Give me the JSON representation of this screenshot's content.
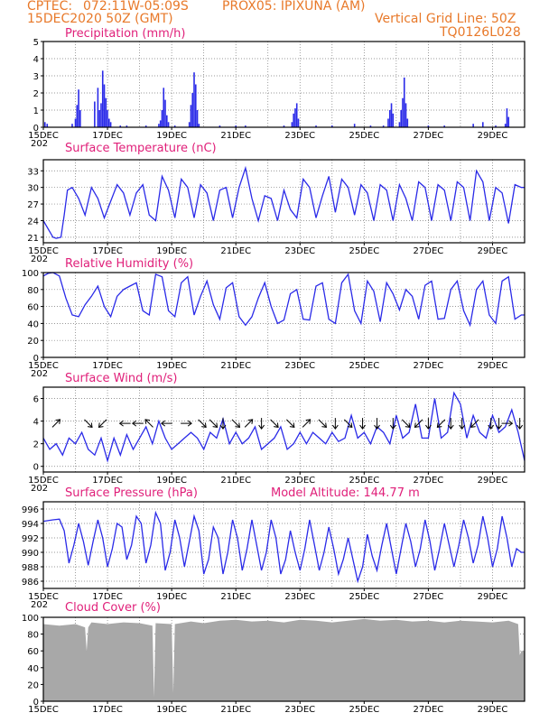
{
  "header": {
    "org": "CPTEC:",
    "coords": "072:11W-05:09S",
    "station": "PROX05: IPIXUNA (AM)",
    "datetime": "15DEC2020 50Z (GMT)",
    "vgrid": "Vertical Grid Line: 50Z",
    "code": "TQ0126L028"
  },
  "x_ticks": [
    "15DEC",
    "17DEC",
    "19DEC",
    "21DEC",
    "23DEC",
    "25DEC",
    "27DEC",
    "29DEC"
  ],
  "x_year_fragment": "202",
  "colors": {
    "series": "#2a2ae8",
    "bars": "#2a2ae8",
    "cloud": "#a8a8a8",
    "title": "#e0207a",
    "header": "#e8792a"
  },
  "chart_data": [
    {
      "id": "precip",
      "type": "bar",
      "title": "Precipitation (mm/h)",
      "ylim": [
        0,
        5
      ],
      "yticks": [
        0,
        1,
        2,
        3,
        4,
        5
      ],
      "xlim": [
        0,
        15
      ],
      "bars": [
        [
          0.05,
          0.3
        ],
        [
          0.12,
          0.2
        ],
        [
          0.9,
          0.2
        ],
        [
          1.0,
          0.5
        ],
        [
          1.05,
          1.3
        ],
        [
          1.1,
          2.2
        ],
        [
          1.15,
          1.0
        ],
        [
          1.6,
          1.5
        ],
        [
          1.7,
          2.3
        ],
        [
          1.75,
          1.0
        ],
        [
          1.8,
          1.4
        ],
        [
          1.85,
          3.3
        ],
        [
          1.9,
          2.5
        ],
        [
          1.95,
          1.7
        ],
        [
          2.0,
          1.0
        ],
        [
          2.05,
          0.5
        ],
        [
          2.1,
          0.3
        ],
        [
          2.4,
          0.1
        ],
        [
          2.6,
          0.1
        ],
        [
          3.2,
          0.1
        ],
        [
          3.6,
          0.2
        ],
        [
          3.65,
          0.4
        ],
        [
          3.7,
          1.0
        ],
        [
          3.75,
          2.3
        ],
        [
          3.8,
          1.6
        ],
        [
          3.85,
          0.7
        ],
        [
          3.9,
          0.3
        ],
        [
          4.1,
          0.1
        ],
        [
          4.55,
          0.3
        ],
        [
          4.6,
          1.3
        ],
        [
          4.65,
          2.0
        ],
        [
          4.7,
          3.2
        ],
        [
          4.75,
          2.5
        ],
        [
          4.8,
          1.0
        ],
        [
          4.85,
          0.2
        ],
        [
          5.5,
          0.1
        ],
        [
          6.0,
          0.1
        ],
        [
          6.3,
          0.1
        ],
        [
          7.5,
          0.1
        ],
        [
          7.75,
          0.3
        ],
        [
          7.8,
          0.8
        ],
        [
          7.85,
          1.1
        ],
        [
          7.9,
          1.4
        ],
        [
          7.95,
          0.5
        ],
        [
          8.5,
          0.1
        ],
        [
          9.0,
          0.1
        ],
        [
          9.7,
          0.2
        ],
        [
          10.2,
          0.1
        ],
        [
          10.6,
          0.1
        ],
        [
          10.75,
          0.5
        ],
        [
          10.8,
          1.0
        ],
        [
          10.85,
          1.4
        ],
        [
          10.9,
          0.8
        ],
        [
          11.1,
          0.3
        ],
        [
          11.15,
          1.0
        ],
        [
          11.2,
          1.7
        ],
        [
          11.25,
          2.9
        ],
        [
          11.3,
          1.4
        ],
        [
          11.35,
          0.5
        ],
        [
          12.0,
          0.1
        ],
        [
          12.5,
          0.1
        ],
        [
          13.4,
          0.2
        ],
        [
          13.7,
          0.3
        ],
        [
          14.1,
          0.1
        ],
        [
          14.4,
          0.2
        ],
        [
          14.45,
          1.1
        ],
        [
          14.5,
          0.6
        ]
      ]
    },
    {
      "id": "temperature",
      "type": "line",
      "title": "Surface Temperature (nC)",
      "ylim": [
        20,
        35
      ],
      "yticks": [
        21,
        24,
        27,
        30,
        33
      ],
      "xlim": [
        0,
        15
      ],
      "x": [
        0,
        0.2,
        0.3,
        0.4,
        0.55,
        0.65,
        0.75,
        0.9,
        1.1,
        1.3,
        1.5,
        1.7,
        1.9,
        2.1,
        2.3,
        2.5,
        2.7,
        2.9,
        3.1,
        3.3,
        3.5,
        3.7,
        3.9,
        4.1,
        4.3,
        4.5,
        4.7,
        4.9,
        5.1,
        5.3,
        5.5,
        5.7,
        5.9,
        6.1,
        6.3,
        6.5,
        6.7,
        6.9,
        7.1,
        7.3,
        7.5,
        7.7,
        7.9,
        8.1,
        8.3,
        8.5,
        8.7,
        8.9,
        9.1,
        9.3,
        9.5,
        9.7,
        9.9,
        10.1,
        10.3,
        10.5,
        10.7,
        10.9,
        11.1,
        11.3,
        11.5,
        11.7,
        11.9,
        12.1,
        12.3,
        12.5,
        12.7,
        12.9,
        13.1,
        13.3,
        13.5,
        13.7,
        13.9,
        14.1,
        14.3,
        14.5,
        14.7,
        14.9,
        15.0
      ],
      "y": [
        24.0,
        22.0,
        21.0,
        20.8,
        21.0,
        25.0,
        29.5,
        30.0,
        28.0,
        25.0,
        30.0,
        28.0,
        24.5,
        27.5,
        30.5,
        29.0,
        25.0,
        29.0,
        30.5,
        25.0,
        24.0,
        32.0,
        29.5,
        24.5,
        31.5,
        30.0,
        24.5,
        30.5,
        29.0,
        24.0,
        29.5,
        30.0,
        24.5,
        30.0,
        33.5,
        28.0,
        24.0,
        28.5,
        28.0,
        24.0,
        29.5,
        26.0,
        24.5,
        31.5,
        30.0,
        24.5,
        28.5,
        32.0,
        25.5,
        31.5,
        30.0,
        25.0,
        30.5,
        29.0,
        24.0,
        30.5,
        29.5,
        24.0,
        30.5,
        28.0,
        24.0,
        31.0,
        30.0,
        24.0,
        30.5,
        29.5,
        24.0,
        31.0,
        30.0,
        24.0,
        33.0,
        31.0,
        24.0,
        30.0,
        29.0,
        23.5,
        30.5,
        30.0,
        30.0
      ]
    },
    {
      "id": "humidity",
      "type": "line",
      "title": "Relative Humidity (%)",
      "ylim": [
        0,
        100
      ],
      "yticks": [
        0,
        20,
        40,
        60,
        80,
        100
      ],
      "xlim": [
        0,
        15
      ],
      "x": [
        0,
        0.15,
        0.3,
        0.5,
        0.7,
        0.9,
        1.1,
        1.3,
        1.5,
        1.7,
        1.9,
        2.1,
        2.3,
        2.5,
        2.7,
        2.9,
        3.1,
        3.3,
        3.5,
        3.7,
        3.9,
        4.1,
        4.3,
        4.5,
        4.7,
        4.9,
        5.1,
        5.3,
        5.5,
        5.7,
        5.9,
        6.1,
        6.3,
        6.5,
        6.7,
        6.9,
        7.1,
        7.3,
        7.5,
        7.7,
        7.9,
        8.1,
        8.3,
        8.5,
        8.7,
        8.9,
        9.1,
        9.3,
        9.5,
        9.7,
        9.9,
        10.1,
        10.3,
        10.5,
        10.7,
        10.9,
        11.1,
        11.3,
        11.5,
        11.7,
        11.9,
        12.1,
        12.3,
        12.5,
        12.7,
        12.9,
        13.1,
        13.3,
        13.5,
        13.7,
        13.9,
        14.1,
        14.3,
        14.5,
        14.7,
        14.9,
        15.0
      ],
      "y": [
        96,
        99,
        100,
        96,
        70,
        50,
        48,
        62,
        72,
        84,
        60,
        48,
        72,
        80,
        84,
        88,
        55,
        50,
        98,
        95,
        55,
        48,
        88,
        95,
        50,
        72,
        90,
        62,
        45,
        82,
        88,
        48,
        38,
        48,
        70,
        88,
        60,
        40,
        44,
        75,
        80,
        45,
        44,
        84,
        88,
        45,
        40,
        88,
        98,
        55,
        40,
        90,
        78,
        42,
        88,
        75,
        56,
        80,
        72,
        45,
        85,
        90,
        45,
        46,
        80,
        90,
        55,
        38,
        80,
        90,
        50,
        40,
        90,
        95,
        45,
        50,
        50
      ]
    },
    {
      "id": "wind",
      "type": "line",
      "title": "Surface Wind (m/s)",
      "ylim": [
        -0.5,
        7
      ],
      "yticks": [
        0,
        2,
        4,
        6
      ],
      "xlim": [
        0,
        15
      ],
      "x": [
        0,
        0.2,
        0.4,
        0.6,
        0.8,
        1.0,
        1.2,
        1.4,
        1.6,
        1.8,
        2.0,
        2.2,
        2.4,
        2.6,
        2.8,
        3.0,
        3.2,
        3.4,
        3.6,
        3.8,
        4.0,
        4.2,
        4.4,
        4.6,
        4.8,
        5.0,
        5.2,
        5.4,
        5.6,
        5.8,
        6.0,
        6.2,
        6.4,
        6.6,
        6.8,
        7.0,
        7.2,
        7.4,
        7.6,
        7.8,
        8.0,
        8.2,
        8.4,
        8.6,
        8.8,
        9.0,
        9.2,
        9.4,
        9.6,
        9.8,
        10.0,
        10.2,
        10.4,
        10.6,
        10.8,
        11.0,
        11.2,
        11.4,
        11.6,
        11.8,
        12.0,
        12.2,
        12.4,
        12.6,
        12.8,
        13.0,
        13.2,
        13.4,
        13.6,
        13.8,
        14.0,
        14.2,
        14.4,
        14.6,
        14.8,
        15.0
      ],
      "y": [
        2.5,
        1.5,
        2.0,
        1.0,
        2.5,
        2.0,
        3.0,
        1.5,
        1.0,
        2.5,
        0.5,
        2.5,
        1.0,
        2.8,
        1.5,
        2.5,
        3.5,
        2.0,
        4.0,
        2.5,
        1.5,
        2.0,
        2.5,
        3.0,
        2.5,
        1.5,
        3.0,
        2.5,
        4.2,
        2.0,
        3.0,
        2.0,
        2.5,
        3.5,
        1.5,
        2.0,
        2.5,
        3.5,
        1.5,
        2.0,
        3.0,
        2.0,
        3.0,
        2.5,
        2.0,
        3.0,
        2.2,
        2.5,
        4.5,
        2.5,
        3.0,
        2.0,
        3.5,
        3.0,
        2.0,
        4.5,
        2.5,
        3.0,
        5.5,
        2.5,
        2.5,
        6.0,
        2.5,
        3.0,
        6.5,
        5.5,
        2.5,
        4.5,
        3.0,
        2.5,
        4.5,
        3.0,
        3.5,
        5.0,
        3.0,
        0.5
      ],
      "arrows": [
        [
          0.4,
          225
        ],
        [
          1.4,
          315
        ],
        [
          1.85,
          45
        ],
        [
          2.55,
          90
        ],
        [
          2.95,
          90
        ],
        [
          3.3,
          135
        ],
        [
          3.85,
          90
        ],
        [
          4.45,
          270
        ],
        [
          4.95,
          315
        ],
        [
          5.3,
          315
        ],
        [
          5.6,
          0
        ],
        [
          6.0,
          315
        ],
        [
          6.4,
          225
        ],
        [
          6.8,
          0
        ],
        [
          7.2,
          315
        ],
        [
          7.7,
          315
        ],
        [
          8.2,
          225
        ],
        [
          8.7,
          315
        ],
        [
          9.1,
          0
        ],
        [
          9.5,
          315
        ],
        [
          9.95,
          0
        ],
        [
          10.4,
          0
        ],
        [
          10.9,
          0
        ],
        [
          11.3,
          315
        ],
        [
          11.7,
          45
        ],
        [
          12.0,
          0
        ],
        [
          12.4,
          45
        ],
        [
          12.7,
          0
        ],
        [
          13.05,
          0
        ],
        [
          13.45,
          45
        ],
        [
          13.95,
          0
        ],
        [
          14.2,
          0
        ],
        [
          14.45,
          270
        ],
        [
          14.85,
          0
        ]
      ]
    },
    {
      "id": "pressure",
      "type": "line",
      "title": "Surface Pressure (hPa)",
      "annotation": "Model Altitude: 144.77 m",
      "ylim": [
        985,
        997
      ],
      "yticks": [
        986,
        988,
        990,
        992,
        994,
        996
      ],
      "xlim": [
        0,
        15
      ],
      "x": [
        0,
        0.3,
        0.5,
        0.65,
        0.8,
        0.95,
        1.1,
        1.25,
        1.4,
        1.55,
        1.7,
        1.85,
        2.0,
        2.15,
        2.3,
        2.45,
        2.6,
        2.75,
        2.9,
        3.05,
        3.2,
        3.35,
        3.5,
        3.65,
        3.8,
        3.95,
        4.1,
        4.25,
        4.4,
        4.55,
        4.7,
        4.85,
        5.0,
        5.15,
        5.3,
        5.45,
        5.6,
        5.75,
        5.9,
        6.05,
        6.2,
        6.35,
        6.5,
        6.65,
        6.8,
        6.95,
        7.1,
        7.25,
        7.4,
        7.55,
        7.7,
        7.85,
        8.0,
        8.15,
        8.3,
        8.45,
        8.6,
        8.75,
        8.9,
        9.05,
        9.2,
        9.35,
        9.5,
        9.65,
        9.8,
        9.95,
        10.1,
        10.25,
        10.4,
        10.55,
        10.7,
        10.85,
        11.0,
        11.15,
        11.3,
        11.45,
        11.6,
        11.75,
        11.9,
        12.05,
        12.2,
        12.35,
        12.5,
        12.65,
        12.8,
        12.95,
        13.1,
        13.25,
        13.4,
        13.55,
        13.7,
        13.85,
        14.0,
        14.15,
        14.3,
        14.45,
        14.6,
        14.75,
        14.9,
        15.0
      ],
      "y": [
        994.3,
        994.5,
        994.6,
        993.0,
        988.5,
        991.0,
        994.0,
        991.5,
        988.2,
        991.5,
        994.5,
        992.0,
        988.0,
        990.5,
        994.0,
        993.5,
        989.0,
        991.0,
        995.0,
        994.0,
        988.5,
        991.0,
        995.5,
        994.0,
        987.5,
        990.0,
        994.5,
        992.0,
        988.0,
        991.5,
        995.0,
        993.0,
        987.0,
        989.0,
        993.5,
        992.0,
        987.0,
        990.0,
        994.5,
        992.0,
        987.5,
        990.5,
        994.5,
        991.0,
        987.5,
        990.0,
        994.5,
        992.0,
        987.0,
        989.0,
        993.0,
        990.0,
        987.5,
        990.5,
        994.5,
        991.0,
        987.5,
        990.0,
        993.5,
        990.5,
        987.0,
        989.0,
        992.0,
        989.0,
        986.0,
        988.0,
        992.5,
        989.5,
        987.5,
        991.0,
        994.0,
        990.5,
        987.0,
        990.5,
        994.0,
        991.5,
        988.0,
        990.5,
        994.5,
        991.5,
        987.5,
        990.5,
        994.0,
        991.0,
        988.0,
        991.0,
        994.5,
        992.0,
        988.5,
        991.0,
        995.0,
        992.0,
        988.0,
        990.5,
        995.0,
        992.0,
        988.0,
        990.5,
        990.0,
        990.0
      ]
    },
    {
      "id": "cloud",
      "type": "area",
      "title": "Cloud Cover (%)",
      "ylim": [
        0,
        100
      ],
      "yticks": [
        0,
        20,
        40,
        60,
        80,
        100
      ],
      "xlim": [
        0,
        15
      ],
      "x": [
        0,
        0.5,
        1.0,
        1.3,
        1.35,
        1.4,
        1.5,
        2.0,
        2.5,
        3.0,
        3.4,
        3.45,
        3.5,
        4.0,
        4.05,
        4.1,
        4.6,
        5.0,
        5.5,
        6.0,
        6.5,
        7.0,
        7.5,
        8.0,
        8.5,
        9.0,
        9.5,
        10.0,
        10.5,
        11.0,
        11.5,
        12.0,
        12.5,
        13.0,
        13.5,
        14.0,
        14.5,
        14.8,
        14.85,
        14.9,
        15.0
      ],
      "y": [
        92,
        90,
        92,
        88,
        60,
        88,
        94,
        92,
        94,
        93,
        90,
        5,
        93,
        92,
        10,
        92,
        95,
        93,
        96,
        97,
        95,
        96,
        94,
        97,
        96,
        94,
        96,
        98,
        96,
        97,
        95,
        96,
        94,
        96,
        95,
        94,
        96,
        92,
        55,
        60,
        60
      ]
    }
  ]
}
